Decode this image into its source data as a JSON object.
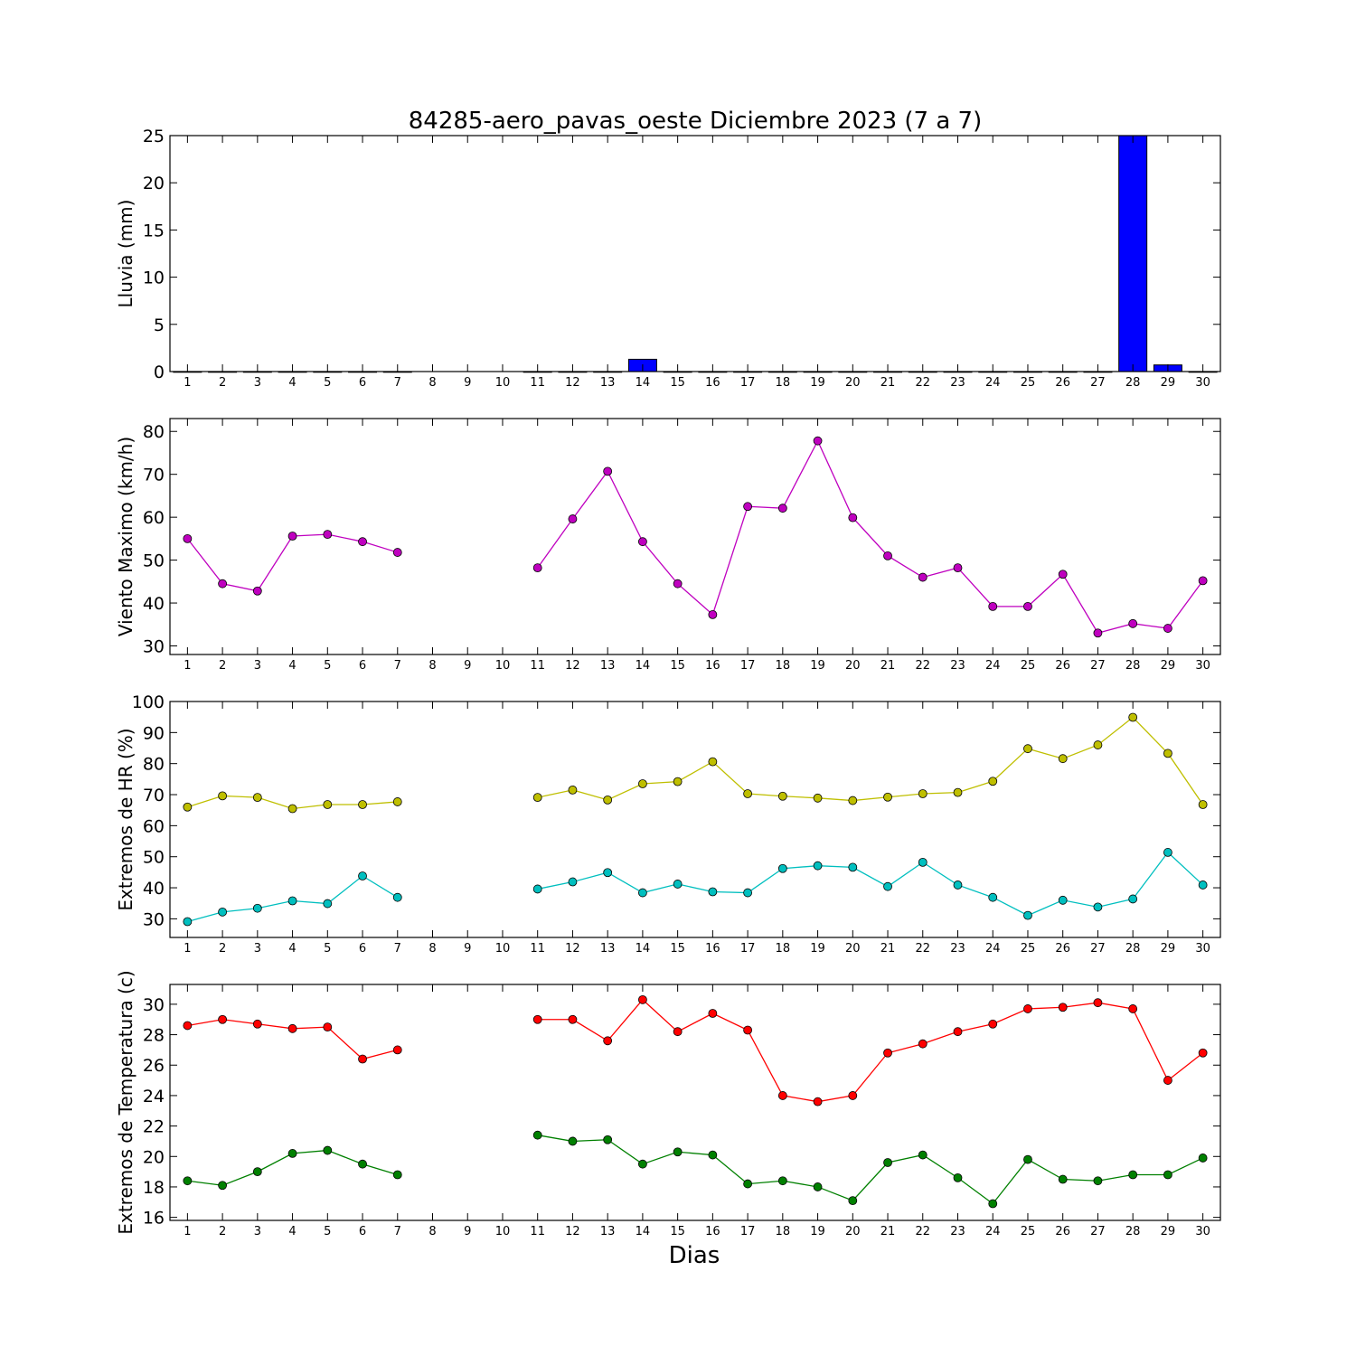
{
  "chart_data": {
    "title": "84285-aero_pavas_oeste Diciembre 2023  (7 a 7)",
    "xlabel": "Dias",
    "x": [
      1,
      2,
      3,
      4,
      5,
      6,
      7,
      8,
      9,
      10,
      11,
      12,
      13,
      14,
      15,
      16,
      17,
      18,
      19,
      20,
      21,
      22,
      23,
      24,
      25,
      26,
      27,
      28,
      29,
      30
    ],
    "panels": [
      {
        "type": "bar",
        "ylabel": "Lluvia (mm)",
        "ylim": [
          0,
          25
        ],
        "yticks": [
          0,
          5,
          10,
          15,
          20,
          25
        ],
        "series": [
          {
            "color": "#0000ff",
            "values": [
              0,
              0,
              0,
              0,
              0,
              0,
              0,
              null,
              null,
              null,
              0,
              0,
              0,
              1.3,
              0,
              0,
              0,
              0,
              0,
              0,
              0,
              0,
              0,
              0,
              0,
              0,
              0,
              25,
              0.7,
              0
            ]
          }
        ]
      },
      {
        "type": "line",
        "ylabel": "Viento Maximo (km/h)",
        "ylim": [
          28,
          83
        ],
        "yticks": [
          30,
          40,
          50,
          60,
          70,
          80
        ],
        "series": [
          {
            "color": "#bf00bf",
            "values": [
              55,
              44.5,
              42.8,
              55.6,
              56,
              54.3,
              51.8,
              null,
              null,
              null,
              48.2,
              59.6,
              70.7,
              54.3,
              44.5,
              37.3,
              62.5,
              62.1,
              77.8,
              59.9,
              51,
              46,
              48.2,
              39.2,
              39.2,
              46.7,
              33,
              35.2,
              34.1,
              45.2
            ]
          }
        ]
      },
      {
        "type": "line",
        "ylabel": "Extremos de HR (%)",
        "ylim": [
          24,
          100
        ],
        "yticks": [
          30,
          40,
          50,
          60,
          70,
          80,
          90,
          100
        ],
        "series": [
          {
            "color": "#bfbf00",
            "values": [
              66,
              69.6,
              69.1,
              65.5,
              66.8,
              66.8,
              67.7,
              null,
              null,
              null,
              69.1,
              71.5,
              68.3,
              73.5,
              74.2,
              80.6,
              70.3,
              69.5,
              68.9,
              68.1,
              69.2,
              70.3,
              70.7,
              74.3,
              84.8,
              81.6,
              86,
              94.9,
              83.3,
              66.8
            ]
          },
          {
            "color": "#00bfbf",
            "values": [
              29.1,
              32.2,
              33.4,
              35.8,
              34.9,
              43.8,
              36.9,
              null,
              null,
              null,
              39.6,
              41.9,
              44.9,
              38.4,
              41.2,
              38.7,
              38.4,
              46.2,
              47.1,
              46.6,
              40.4,
              48.2,
              40.9,
              36.9,
              31.1,
              36,
              33.8,
              36.4,
              51.4,
              40.9
            ]
          }
        ]
      },
      {
        "type": "line",
        "ylabel": "Extremos de Temperatura (c)",
        "ylim": [
          15.8,
          31.3
        ],
        "yticks": [
          16,
          18,
          20,
          22,
          24,
          26,
          28,
          30
        ],
        "series": [
          {
            "color": "#ff0000",
            "values": [
              28.6,
              29,
              28.7,
              28.4,
              28.5,
              26.4,
              27,
              null,
              null,
              null,
              29,
              29,
              27.6,
              30.3,
              28.2,
              29.4,
              28.3,
              24,
              23.6,
              24,
              26.8,
              27.4,
              28.2,
              28.7,
              29.7,
              29.8,
              30.1,
              29.7,
              25,
              26.8
            ]
          },
          {
            "color": "#008000",
            "values": [
              18.4,
              18.1,
              19,
              20.2,
              20.4,
              19.5,
              18.8,
              null,
              null,
              null,
              21.4,
              21,
              21.1,
              19.5,
              20.3,
              20.1,
              18.2,
              18.4,
              18,
              17.1,
              19.6,
              20.1,
              18.6,
              16.9,
              19.8,
              18.5,
              18.4,
              18.8,
              18.8,
              19.9
            ]
          }
        ]
      }
    ]
  }
}
